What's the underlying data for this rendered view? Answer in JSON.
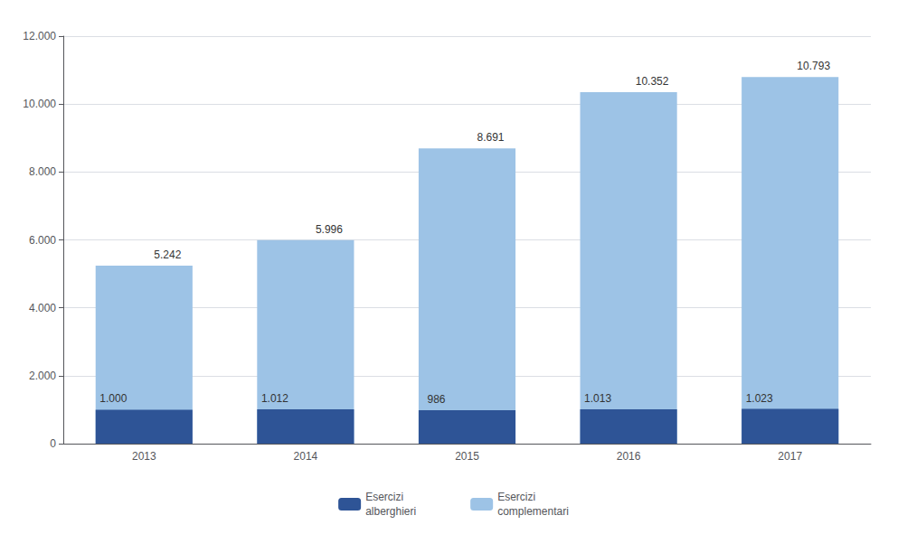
{
  "chart_data": {
    "type": "bar",
    "categories": [
      "2013",
      "2014",
      "2015",
      "2016",
      "2017"
    ],
    "series": [
      {
        "name": "Esercizi\nalberghieri",
        "color": "#2e5496",
        "values": [
          1000,
          1012,
          986,
          1013,
          1023
        ],
        "value_labels": [
          "1.000",
          "1.012",
          "986",
          "1.013",
          "1.023"
        ]
      },
      {
        "name": "Esercizi\ncomplementari",
        "color": "#9dc3e6",
        "values": [
          5242,
          5996,
          8691,
          10352,
          10793
        ],
        "value_labels": [
          "5.242",
          "5.996",
          "8.691",
          "10.352",
          "10.793"
        ]
      }
    ],
    "ylim": [
      0,
      12000
    ],
    "yticks": [
      0,
      {
        "value": 2000,
        "label": "2.000"
      },
      {
        "value": 4000,
        "label": "4.000"
      },
      {
        "value": 6000,
        "label": "6.000"
      },
      {
        "value": 8000,
        "label": "8.000"
      },
      {
        "value": 10000,
        "label": "10.000"
      },
      {
        "value": 12000,
        "label": "12.000"
      }
    ],
    "grid": true,
    "data_labels": true,
    "legend": "bottom"
  }
}
